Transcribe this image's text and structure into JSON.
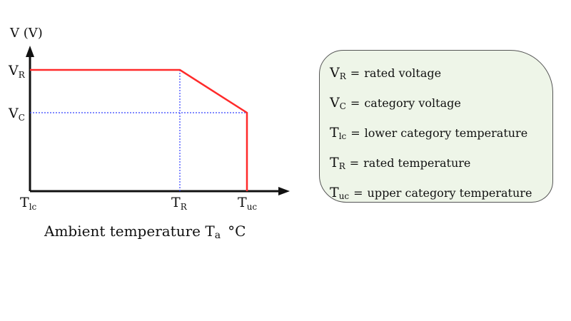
{
  "axes": {
    "y_label": "V (V)",
    "x_label_text": "Ambient temperature T",
    "x_label_sub": "a",
    "x_label_unit": "°C"
  },
  "y_ticks": [
    {
      "base": "V",
      "sub": "R"
    },
    {
      "base": "V",
      "sub": "C"
    }
  ],
  "x_ticks": [
    {
      "base": "T",
      "sub": "lc"
    },
    {
      "base": "T",
      "sub": "R"
    },
    {
      "base": "T",
      "sub": "uc"
    }
  ],
  "colors": {
    "curve": "#ff2a2a",
    "guides": "#3340ff",
    "axes": "#111111",
    "legend_fill": "#eef5e8"
  },
  "legend": [
    {
      "base": "V",
      "sub": "R",
      "eq": "=",
      "text": "rated voltage"
    },
    {
      "base": "V",
      "sub": "C",
      "eq": "=",
      "text": "category voltage"
    },
    {
      "base": "T",
      "sub": "lc",
      "eq": "=",
      "text": "lower category temperature"
    },
    {
      "base": "T",
      "sub": "R",
      "eq": "=",
      "text": "rated temperature"
    },
    {
      "base": "T",
      "sub": "uc",
      "eq": "=",
      "text": "upper category temperature"
    }
  ]
}
